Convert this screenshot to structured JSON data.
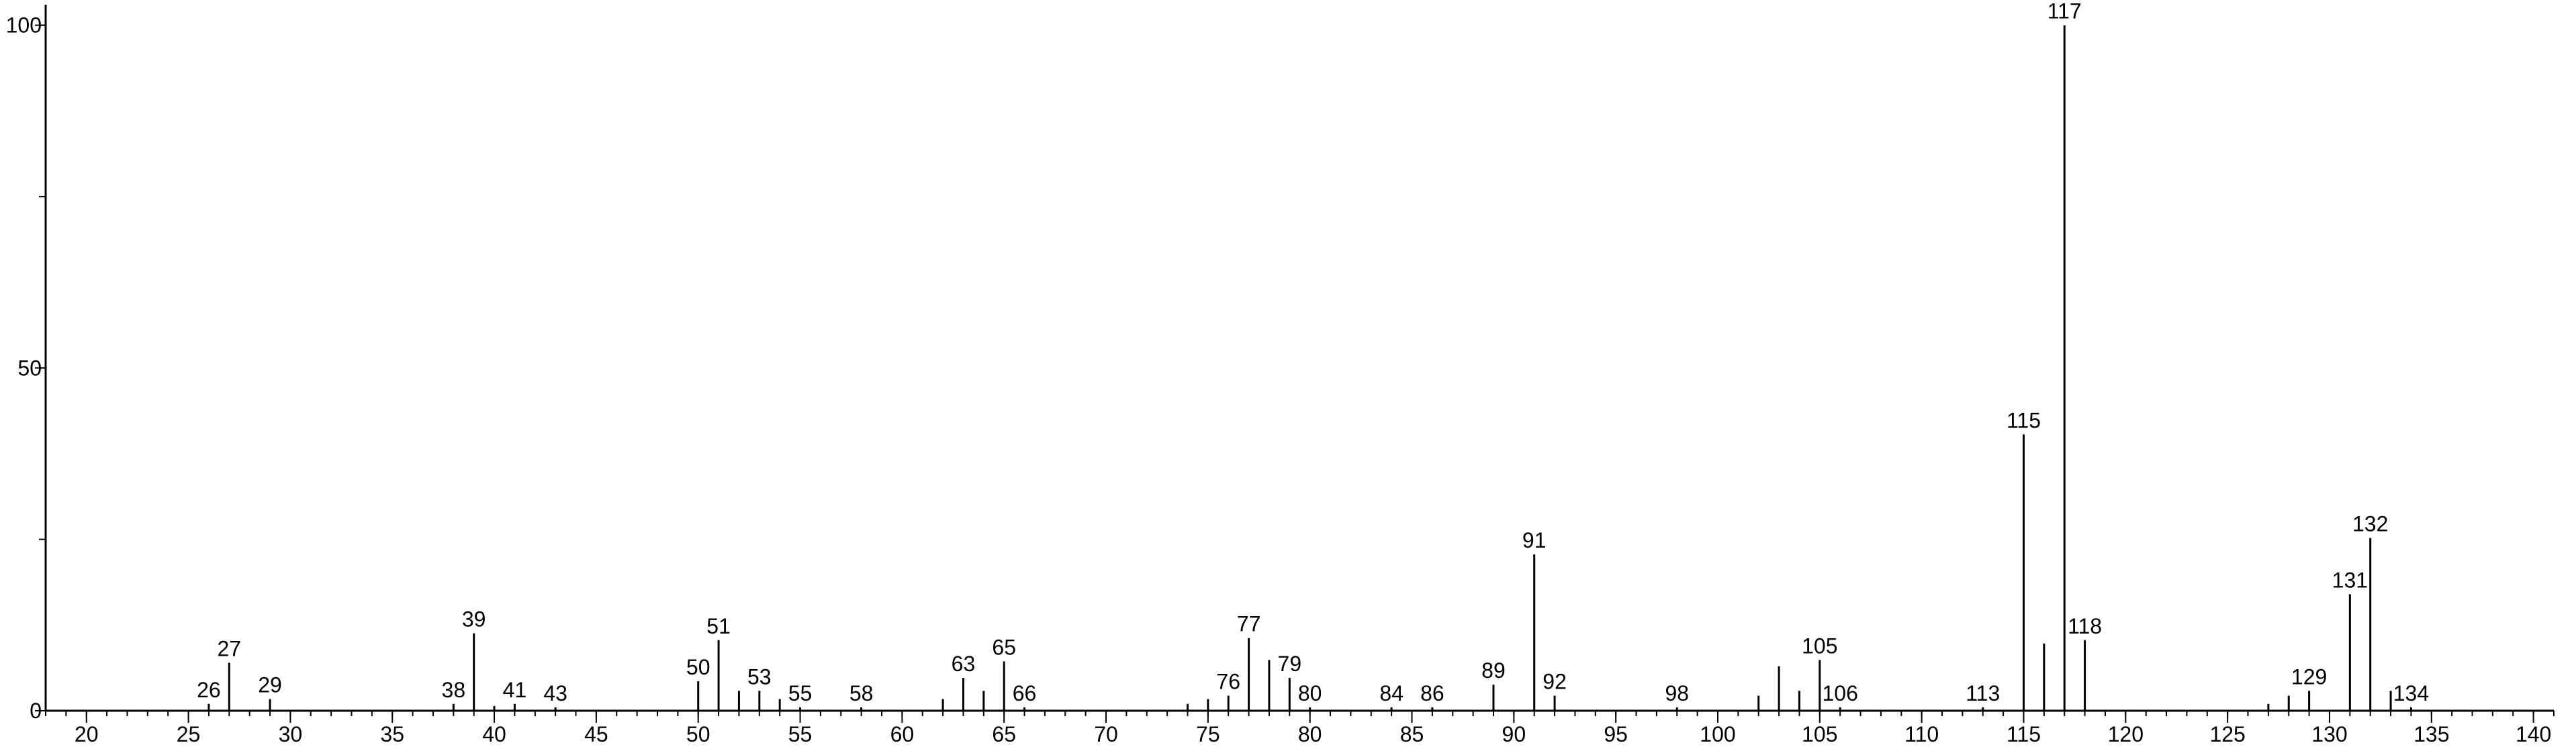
{
  "chart_data": {
    "type": "stick",
    "x": [
      26,
      27,
      29,
      38,
      39,
      40,
      41,
      43,
      50,
      51,
      52,
      53,
      54,
      55,
      58,
      62,
      63,
      64,
      65,
      66,
      74,
      75,
      76,
      77,
      78,
      79,
      80,
      84,
      86,
      89,
      91,
      92,
      98,
      102,
      103,
      104,
      105,
      106,
      113,
      115,
      116,
      117,
      118,
      127,
      128,
      129,
      131,
      132,
      133,
      134
    ],
    "values": [
      1,
      7,
      1.7,
      1,
      11.3,
      0.7,
      1,
      0.5,
      4.3,
      10.3,
      2.9,
      2.9,
      1.7,
      0.5,
      0.5,
      1.7,
      4.8,
      2.9,
      7.2,
      0.5,
      1,
      1.7,
      2.2,
      10.6,
      7.4,
      4.8,
      0.5,
      0.5,
      0.5,
      3.8,
      22.8,
      2.2,
      0.5,
      2.2,
      6.5,
      2.9,
      7.4,
      0.5,
      0.5,
      40.3,
      9.8,
      100,
      10.3,
      1,
      2.2,
      2.9,
      17,
      25.2,
      2.9,
      0.5
    ],
    "peak_labels": [
      26,
      27,
      29,
      38,
      39,
      41,
      43,
      50,
      51,
      53,
      55,
      58,
      63,
      65,
      66,
      76,
      77,
      79,
      80,
      84,
      86,
      89,
      91,
      92,
      98,
      105,
      106,
      113,
      115,
      117,
      118,
      129,
      131,
      132,
      134
    ],
    "color": "#000000",
    "xlim": [
      18,
      141
    ],
    "xticks": [
      20,
      25,
      30,
      35,
      40,
      45,
      50,
      55,
      60,
      65,
      70,
      75,
      80,
      85,
      90,
      95,
      100,
      105,
      110,
      115,
      120,
      125,
      130,
      135,
      140
    ],
    "x_minor_step": 1,
    "ylim": [
      0,
      103
    ],
    "yticks": [
      0,
      50,
      100
    ],
    "y_minor_step": 25
  }
}
